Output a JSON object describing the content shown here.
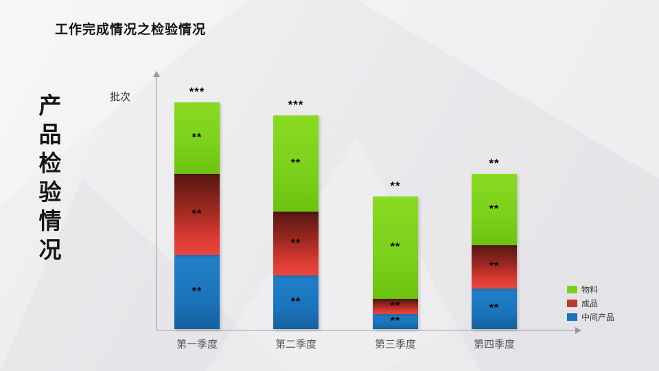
{
  "slide": {
    "title": "工作完成情况之检验情况",
    "side_title": "产品检验情况"
  },
  "legend": [
    {
      "label": "物料",
      "color": "#7cd11b"
    },
    {
      "label": "成品",
      "color": "#c0392b"
    },
    {
      "label": "中间产品",
      "color": "#1b74bb"
    }
  ],
  "chart_data": {
    "type": "bar",
    "subtype": "stacked",
    "title": "工作完成情况之检验情况",
    "ylabel": "批次",
    "xlabel": "",
    "grid": false,
    "legend_position": "bottom-right",
    "categories": [
      "第一季度",
      "第二季度",
      "第三季度",
      "第四季度"
    ],
    "series": [
      {
        "name": "中间产品",
        "color": "#1b74bb",
        "values": [
          29,
          21,
          6,
          16
        ],
        "data_labels": [
          "**",
          "**",
          "**",
          "**"
        ]
      },
      {
        "name": "成品",
        "color": "#c0392b",
        "values": [
          32,
          25,
          6,
          17
        ],
        "data_labels": [
          "**",
          "**",
          "**",
          "**"
        ]
      },
      {
        "name": "物料",
        "color": "#7cd11b",
        "values": [
          28,
          38,
          40,
          28
        ],
        "data_labels": [
          "**",
          "**",
          "**",
          "**"
        ]
      }
    ],
    "total_labels": [
      "***",
      "***",
      "**",
      "**"
    ]
  }
}
